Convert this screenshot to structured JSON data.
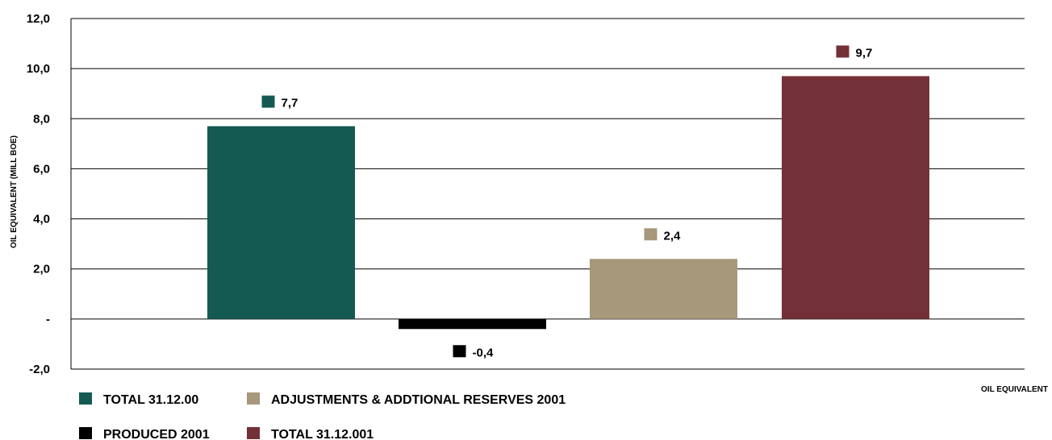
{
  "chart_data": {
    "type": "bar",
    "ylabel": "OIL EQUIVALENT (MILL BOE)",
    "xlabel": "OIL EQUIVALENT",
    "ylim": [
      -2,
      12
    ],
    "yticks": [
      {
        "value": 12,
        "label": "12,0"
      },
      {
        "value": 10,
        "label": "10,0"
      },
      {
        "value": 8,
        "label": "8,0"
      },
      {
        "value": 6,
        "label": "6,0"
      },
      {
        "value": 4,
        "label": "4,0"
      },
      {
        "value": 2,
        "label": "2,0"
      },
      {
        "value": 0,
        "label": "-"
      },
      {
        "value": -2,
        "label": "-2,0"
      }
    ],
    "grid": true,
    "series": [
      {
        "name": "TOTAL 31.12.00",
        "values": [
          7.7
        ],
        "label": "7,7",
        "color": "#145A52"
      },
      {
        "name": "PRODUCED 2001",
        "values": [
          -0.4
        ],
        "label": "-0,4",
        "color": "#000000"
      },
      {
        "name": "ADJUSTMENTS & ADDTIONAL RESERVES 2001",
        "values": [
          2.4
        ],
        "label": "2,4",
        "color": "#A7977B"
      },
      {
        "name": "TOTAL 31.12.001",
        "values": [
          9.7
        ],
        "label": "9,7",
        "color": "#733137"
      }
    ],
    "legend": {
      "position": "bottom-left",
      "items": [
        {
          "name": "TOTAL 31.12.00",
          "color": "#145A52"
        },
        {
          "name": "ADJUSTMENTS & ADDTIONAL RESERVES 2001",
          "color": "#A7977B"
        },
        {
          "name": "PRODUCED 2001",
          "color": "#000000"
        },
        {
          "name": "TOTAL 31.12.001",
          "color": "#733137"
        }
      ]
    }
  }
}
